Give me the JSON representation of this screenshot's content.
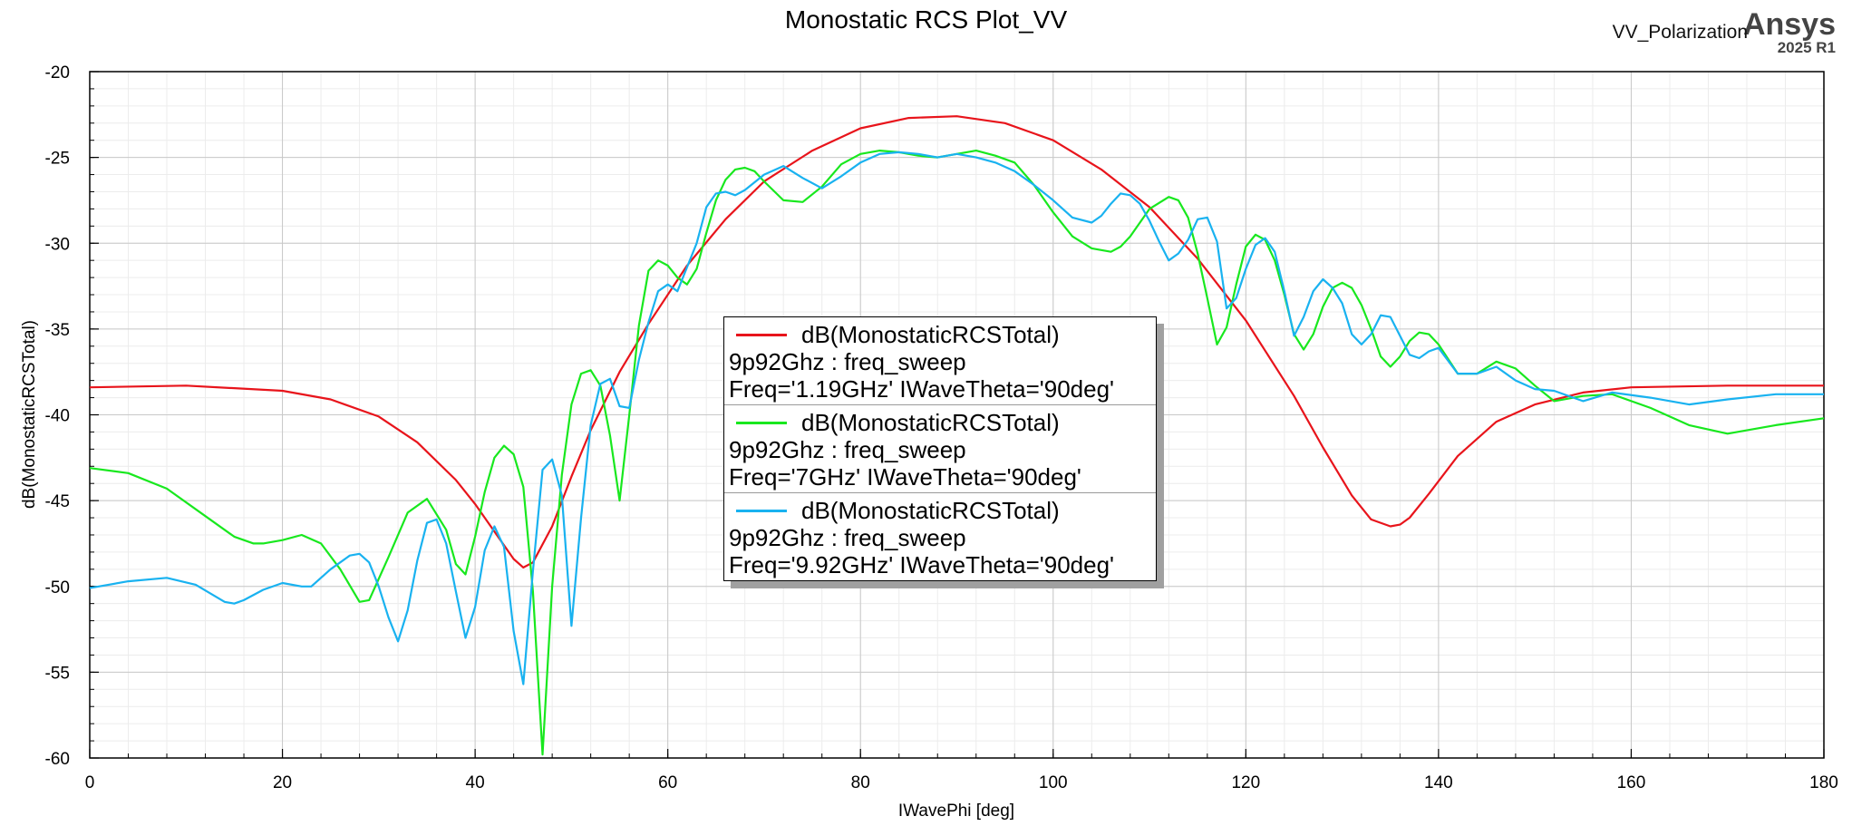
{
  "title": "Monostatic RCS Plot_VV",
  "branding": {
    "polarization_label": "VV_Polarization",
    "brand": "Ansys",
    "version": "2025 R1"
  },
  "chart_data": {
    "type": "line",
    "xlabel": "IWavePhi [deg]",
    "ylabel": "dB(MonostaticRCSTotal)",
    "xlim": [
      0,
      180
    ],
    "ylim": [
      -60,
      -20
    ],
    "xticks": [
      0,
      20,
      40,
      60,
      80,
      100,
      120,
      140,
      160,
      180
    ],
    "yticks": [
      -60,
      -55,
      -50,
      -45,
      -40,
      -35,
      -30,
      -25,
      -20
    ],
    "grid": true,
    "legend_position": "center",
    "series": [
      {
        "name": "dB(MonostaticRCSTotal)",
        "context": "9p92Ghz : freq_sweep",
        "variation": "Freq='1.19GHz' IWaveTheta='90deg'",
        "color": "#e8141b",
        "x": [
          0,
          10,
          20,
          25,
          30,
          34,
          38,
          40,
          42,
          44,
          45,
          46,
          48,
          50,
          52,
          55,
          58,
          62,
          66,
          70,
          75,
          80,
          85,
          90,
          95,
          100,
          105,
          110,
          115,
          120,
          125,
          128,
          131,
          133,
          135,
          136,
          137,
          139,
          142,
          146,
          150,
          155,
          160,
          170,
          180
        ],
        "y": [
          -38.4,
          -38.3,
          -38.6,
          -39.1,
          -40.1,
          -41.6,
          -43.8,
          -45.2,
          -46.8,
          -48.4,
          -48.9,
          -48.6,
          -46.5,
          -43.6,
          -40.9,
          -37.5,
          -34.7,
          -31.3,
          -28.6,
          -26.4,
          -24.6,
          -23.3,
          -22.7,
          -22.6,
          -23.0,
          -24.0,
          -25.7,
          -27.9,
          -30.9,
          -34.5,
          -38.9,
          -41.9,
          -44.7,
          -46.1,
          -46.5,
          -46.4,
          -46.0,
          -44.6,
          -42.4,
          -40.4,
          -39.4,
          -38.7,
          -38.4,
          -38.3,
          -38.3
        ]
      },
      {
        "name": "dB(MonostaticRCSTotal)",
        "context": "9p92Ghz : freq_sweep",
        "variation": "Freq='7GHz' IWaveTheta='90deg'",
        "color": "#18e81e",
        "x": [
          0,
          4,
          8,
          12,
          15,
          17,
          18,
          20,
          22,
          24,
          26,
          28,
          29,
          31,
          33,
          35,
          37,
          38,
          39,
          40,
          41,
          42,
          43,
          44,
          45,
          46,
          47,
          48,
          49,
          50,
          51,
          52,
          53,
          54,
          55,
          56,
          57,
          58,
          59,
          60,
          61,
          62,
          63,
          64,
          65,
          66,
          67,
          68,
          69,
          70,
          72,
          74,
          76,
          78,
          80,
          82,
          84,
          86,
          88,
          90,
          92,
          94,
          96,
          98,
          100,
          102,
          104,
          106,
          107,
          108,
          110,
          112,
          113,
          114,
          115,
          116,
          117,
          118,
          119,
          120,
          121,
          122,
          123,
          124,
          125,
          126,
          127,
          128,
          129,
          130,
          131,
          132,
          133,
          134,
          135,
          136,
          137,
          138,
          139,
          140,
          142,
          144,
          146,
          148,
          150,
          152,
          155,
          158,
          162,
          166,
          170,
          175,
          180
        ],
        "y": [
          -43.1,
          -43.4,
          -44.3,
          -45.9,
          -47.1,
          -47.5,
          -47.5,
          -47.3,
          -47.0,
          -47.5,
          -49.0,
          -50.9,
          -50.8,
          -48.3,
          -45.7,
          -44.9,
          -46.7,
          -48.7,
          -49.3,
          -47.1,
          -44.5,
          -42.5,
          -41.8,
          -42.3,
          -44.2,
          -50.3,
          -59.8,
          -50.0,
          -43.5,
          -39.4,
          -37.6,
          -37.4,
          -38.3,
          -41.2,
          -45.0,
          -40.0,
          -34.8,
          -31.6,
          -31.0,
          -31.3,
          -32.0,
          -32.4,
          -31.5,
          -29.4,
          -27.5,
          -26.3,
          -25.7,
          -25.6,
          -25.8,
          -26.4,
          -27.5,
          -27.6,
          -26.7,
          -25.4,
          -24.8,
          -24.6,
          -24.7,
          -24.9,
          -25.0,
          -24.8,
          -24.6,
          -24.9,
          -25.3,
          -26.6,
          -28.2,
          -29.6,
          -30.3,
          -30.5,
          -30.2,
          -29.6,
          -28.0,
          -27.3,
          -27.5,
          -28.5,
          -30.6,
          -33.2,
          -35.9,
          -34.9,
          -32.4,
          -30.2,
          -29.5,
          -29.8,
          -31.0,
          -33.0,
          -35.3,
          -36.2,
          -35.3,
          -33.7,
          -32.6,
          -32.3,
          -32.6,
          -33.6,
          -35.0,
          -36.6,
          -37.2,
          -36.6,
          -35.7,
          -35.2,
          -35.3,
          -35.9,
          -37.6,
          -37.6,
          -36.9,
          -37.3,
          -38.3,
          -39.2,
          -38.9,
          -38.8,
          -39.6,
          -40.6,
          -41.1,
          -40.6,
          -40.2
        ]
      },
      {
        "name": "dB(MonostaticRCSTotal)",
        "context": "9p92Ghz : freq_sweep",
        "variation": "Freq='9.92GHz' IWaveTheta='90deg'",
        "color": "#19b2f0",
        "x": [
          0,
          4,
          8,
          11,
          14,
          15,
          16,
          18,
          20,
          22,
          23,
          25,
          27,
          28,
          29,
          30,
          31,
          32,
          33,
          34,
          35,
          36,
          37,
          38,
          39,
          40,
          41,
          42,
          43,
          44,
          45,
          46,
          47,
          48,
          49,
          50,
          51,
          52,
          53,
          54,
          55,
          56,
          57,
          58,
          59,
          60,
          61,
          62,
          63,
          64,
          65,
          66,
          67,
          68,
          70,
          72,
          74,
          76,
          78,
          80,
          82,
          84,
          86,
          88,
          90,
          92,
          94,
          96,
          98,
          100,
          102,
          104,
          105,
          106,
          107,
          108,
          109,
          110,
          111,
          112,
          113,
          114,
          115,
          116,
          117,
          118,
          119,
          120,
          121,
          122,
          123,
          124,
          125,
          126,
          127,
          128,
          129,
          130,
          131,
          132,
          133,
          134,
          135,
          136,
          137,
          138,
          139,
          140,
          142,
          144,
          146,
          148,
          150,
          152,
          155,
          158,
          162,
          166,
          170,
          175,
          180
        ],
        "y": [
          -50.1,
          -49.7,
          -49.5,
          -49.9,
          -50.9,
          -51.0,
          -50.8,
          -50.2,
          -49.8,
          -50.0,
          -50.0,
          -49.0,
          -48.2,
          -48.1,
          -48.6,
          -50.0,
          -51.8,
          -53.2,
          -51.4,
          -48.5,
          -46.3,
          -46.1,
          -47.5,
          -50.3,
          -53.0,
          -51.2,
          -47.9,
          -46.5,
          -47.7,
          -52.6,
          -55.7,
          -49.1,
          -43.2,
          -42.6,
          -44.7,
          -52.3,
          -46.0,
          -40.6,
          -38.2,
          -37.9,
          -39.5,
          -39.6,
          -36.8,
          -34.6,
          -32.8,
          -32.4,
          -32.8,
          -31.4,
          -30.0,
          -27.9,
          -27.1,
          -27.0,
          -27.2,
          -26.9,
          -26.0,
          -25.5,
          -26.2,
          -26.8,
          -26.1,
          -25.3,
          -24.8,
          -24.7,
          -24.8,
          -25.0,
          -24.8,
          -25.0,
          -25.3,
          -25.8,
          -26.6,
          -27.5,
          -28.5,
          -28.8,
          -28.4,
          -27.7,
          -27.1,
          -27.2,
          -27.7,
          -28.7,
          -29.9,
          -31.0,
          -30.6,
          -29.8,
          -28.6,
          -28.5,
          -29.9,
          -33.8,
          -33.2,
          -31.5,
          -30.1,
          -29.7,
          -30.5,
          -32.8,
          -35.4,
          -34.3,
          -32.8,
          -32.1,
          -32.6,
          -33.5,
          -35.3,
          -35.9,
          -35.3,
          -34.2,
          -34.3,
          -35.4,
          -36.5,
          -36.7,
          -36.3,
          -36.1,
          -37.6,
          -37.6,
          -37.2,
          -38.0,
          -38.5,
          -38.6,
          -39.2,
          -38.7,
          -39.0,
          -39.4,
          -39.1,
          -38.8,
          -38.8
        ]
      }
    ]
  }
}
